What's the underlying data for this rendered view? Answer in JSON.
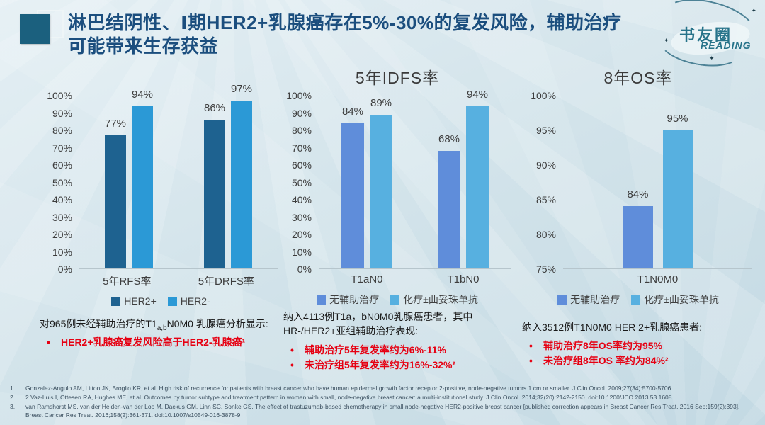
{
  "header": {
    "title_line1": "淋巴结阴性、Ⅰ期HER2+乳腺癌存在5%-30%的复发风险，辅助治疗",
    "title_line2": "可能带来生存获益",
    "logo_cn": "书友圈",
    "logo_en": "READING"
  },
  "colors": {
    "her2_positive": "#1e6290",
    "her2_negative": "#2b99d6",
    "no_adjuvant": "#5f8dda",
    "chemo_trastuzumab": "#57b0e0",
    "bullet_red": "#e60012",
    "title_blue": "#1b4e7e"
  },
  "chart_data": [
    {
      "type": "bar",
      "title": "",
      "categories": [
        "5年RFS率",
        "5年DRFS率"
      ],
      "series": [
        {
          "name": "HER2+",
          "color": "#1e6290",
          "values": [
            77,
            86
          ]
        },
        {
          "name": "HER2-",
          "color": "#2b99d6",
          "values": [
            94,
            97
          ]
        }
      ],
      "ylim": [
        0,
        100
      ],
      "ystep": 10,
      "unit": "%",
      "grid": false,
      "legend_position": "bottom"
    },
    {
      "type": "bar",
      "title": "5年IDFS率",
      "categories": [
        "T1aN0",
        "T1bN0"
      ],
      "series": [
        {
          "name": "无辅助治疗",
          "color": "#5f8dda",
          "values": [
            84,
            68
          ]
        },
        {
          "name": "化疗±曲妥珠单抗",
          "color": "#57b0e0",
          "values": [
            89,
            94
          ]
        }
      ],
      "ylim": [
        0,
        100
      ],
      "ystep": 10,
      "unit": "%",
      "grid": false,
      "legend_position": "bottom"
    },
    {
      "type": "bar",
      "title": "8年OS率",
      "categories": [
        "T1N0M0"
      ],
      "series": [
        {
          "name": "无辅助治疗",
          "color": "#5f8dda",
          "values": [
            84
          ]
        },
        {
          "name": "化疗±曲妥珠单抗",
          "color": "#57b0e0",
          "values": [
            95
          ]
        }
      ],
      "ylim": [
        75,
        100
      ],
      "ystep": 5,
      "unit": "%",
      "grid": false,
      "legend_position": "bottom"
    }
  ],
  "notes": [
    {
      "intro_prefix": "对965例未经辅助治疗的T1",
      "intro_sub": "a,b",
      "intro_suffix": "N0M0 乳腺癌分析显示:",
      "bullets": [
        "HER2+乳腺癌复发风险高于HER2-乳腺癌¹"
      ]
    },
    {
      "intro_prefix": "纳入4113例T1a，bN0M0乳腺癌患者，其中HR-/HER2+亚组辅助治疗表现:",
      "intro_sub": "",
      "intro_suffix": "",
      "bullets": [
        "辅助治疗5年复发率约为6%-11%",
        "未治疗组5年复发率约为16%-32%²"
      ]
    },
    {
      "intro_prefix": "纳入3512例T1N0M0 HER 2+乳腺癌患者:",
      "intro_sub": "",
      "intro_suffix": "",
      "bullets": [
        "辅助治疗8年OS率约为95%",
        "未治疗组8年OS 率约为84%²"
      ]
    }
  ],
  "references": [
    {
      "num": "1.",
      "text": "Gonzalez-Angulo AM, Litton JK, Broglio KR, et al. High risk of recurrence for patients with breast cancer who have human epidermal growth factor receptor 2-positive, node-negative tumors 1 cm or smaller. J Clin Oncol. 2009;27(34):5700-5706."
    },
    {
      "num": "2.",
      "text": "2.Vaz-Luis I, Ottesen RA, Hughes ME, et al. Outcomes by tumor subtype and treatment pattern in women with small, node-negative breast cancer: a multi-institutional study. J Clin Oncol. 2014;32(20):2142-2150. doi:10.1200/JCO.2013.53.1608."
    },
    {
      "num": "3.",
      "text": "van Ramshorst MS, van der Heiden-van der Loo M, Dackus GM, Linn SC, Sonke GS. The effect of trastuzumab-based chemotherapy in small node-negative HER2-positive breast cancer [published correction appears in Breast Cancer Res Treat. 2016 Sep;159(2):393]. Breast Cancer Res Treat. 2016;158(2):361-371. doi:10.1007/s10549-016-3878-9"
    }
  ]
}
